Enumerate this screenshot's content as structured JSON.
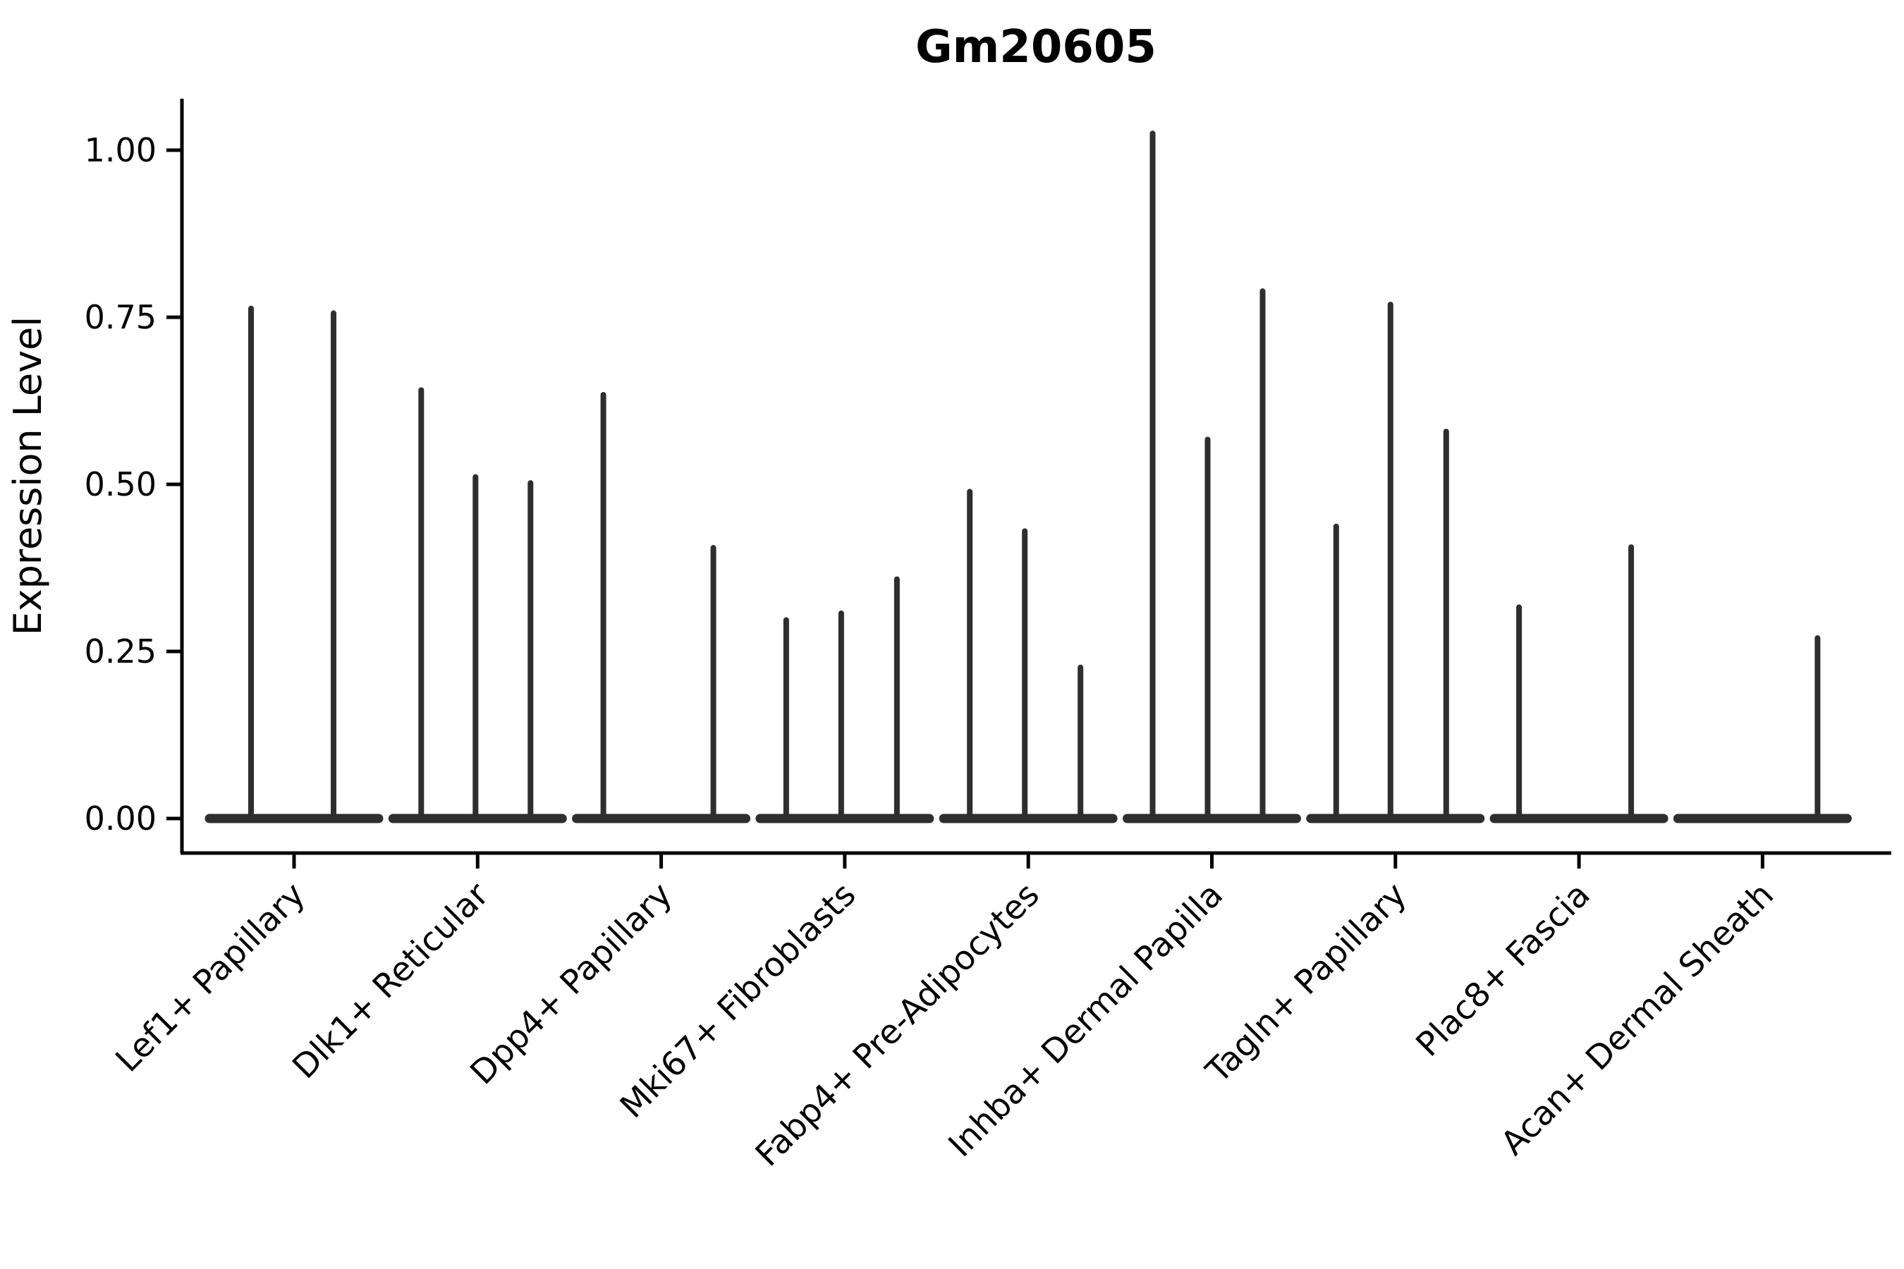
{
  "title": "Gm20605",
  "chart_data": {
    "type": "violin",
    "title": "Gm20605",
    "xlabel": "",
    "ylabel": "Expression Level",
    "ylim": [
      0,
      1.08
    ],
    "yticks": [
      0.0,
      0.25,
      0.5,
      0.75,
      1.0
    ],
    "ytick_labels": [
      "0.00",
      "0.25",
      "0.50",
      "0.75",
      "1.00"
    ],
    "grid": false,
    "legend_position": "none",
    "categories": [
      "Lef1+ Papillary",
      "Dlk1+ Reticular",
      "Dpp4+ Papillary",
      "Mki67+ Fibroblasts",
      "Fabp4+ Pre-Adipocytes",
      "Inhba+ Dermal Papilla",
      "Tagln+ Papillary",
      "Plac8+ Fascia",
      "Acan+ Dermal Sheath"
    ],
    "groups": [
      {
        "category": "Lef1+ Papillary",
        "violins": [
          {
            "slot_offset": -61,
            "peak": 0.763
          },
          {
            "slot_offset": 56,
            "peak": 0.756
          }
        ]
      },
      {
        "category": "Dlk1+ Reticular",
        "violins": [
          {
            "slot_offset": -80,
            "peak": 0.641
          },
          {
            "slot_offset": -3,
            "peak": 0.511
          },
          {
            "slot_offset": 75,
            "peak": 0.502
          }
        ]
      },
      {
        "category": "Dpp4+ Papillary",
        "violins": [
          {
            "slot_offset": -82,
            "peak": 0.634
          },
          {
            "slot_offset": 74,
            "peak": 0.405
          }
        ]
      },
      {
        "category": "Mki67+ Fibroblasts",
        "violins": [
          {
            "slot_offset": -83,
            "peak": 0.297
          },
          {
            "slot_offset": -5,
            "peak": 0.307
          },
          {
            "slot_offset": 74,
            "peak": 0.358
          }
        ]
      },
      {
        "category": "Fabp4+ Pre-Adipocytes",
        "violins": [
          {
            "slot_offset": -83,
            "peak": 0.489
          },
          {
            "slot_offset": -5,
            "peak": 0.43
          },
          {
            "slot_offset": 74,
            "peak": 0.226
          }
        ]
      },
      {
        "category": "Inhba+ Dermal Papilla",
        "violins": [
          {
            "slot_offset": -84,
            "peak": 1.025
          },
          {
            "slot_offset": -6,
            "peak": 0.567
          },
          {
            "slot_offset": 72,
            "peak": 0.789
          }
        ]
      },
      {
        "category": "Tagln+ Papillary",
        "violins": [
          {
            "slot_offset": -84,
            "peak": 0.437
          },
          {
            "slot_offset": -7,
            "peak": 0.769
          },
          {
            "slot_offset": 72,
            "peak": 0.579
          }
        ]
      },
      {
        "category": "Plac8+ Fascia",
        "violins": [
          {
            "slot_offset": -85,
            "peak": 0.316
          },
          {
            "slot_offset": 74,
            "peak": 0.406
          }
        ]
      },
      {
        "category": "Acan+ Dermal Sheath",
        "violins": [
          {
            "slot_offset": 78,
            "peak": 0.27
          }
        ]
      }
    ]
  },
  "colors": {
    "ink": "#000000",
    "violin": "#2e2e2e",
    "background": "#ffffff"
  }
}
